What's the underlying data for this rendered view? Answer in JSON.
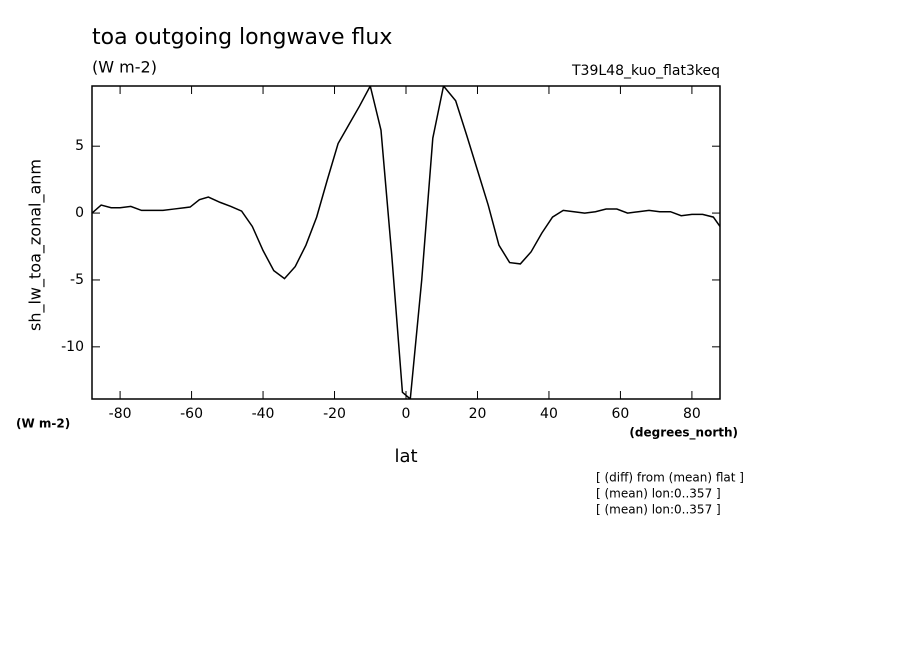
{
  "chart_data": {
    "type": "line",
    "title": "toa outgoing longwave flux",
    "subtitle": "(W m-2)",
    "run_label": "T39L48_kuo_flat3keq",
    "y_label": "sh_lw_toa_zonal_anm",
    "y_units": "(W m-2)",
    "x_units": "(degrees_north)",
    "x_label": "lat",
    "notes": [
      "[ (diff) from (mean) flat ]",
      "[ (mean) lon:0..357 ]",
      "[ (mean) lon:0..357 ]"
    ],
    "xlim": [
      -87.86,
      87.86
    ],
    "ylim": [
      -13.9,
      9.5
    ],
    "xticks": [
      -80,
      -60,
      -40,
      -20,
      0,
      20,
      40,
      60,
      80
    ],
    "yticks": [
      -10,
      -5,
      0,
      5
    ],
    "color": "#000000",
    "x": [
      -87.86,
      -85.3,
      -82.5,
      -80,
      -77,
      -74,
      -71,
      -68,
      -65,
      -62,
      -60.4,
      -57.8,
      -55.3,
      -52,
      -49,
      -46,
      -43,
      -40,
      -37,
      -34,
      -31,
      -28,
      -25,
      -22,
      -19,
      -16,
      -13,
      -10,
      -7,
      -4,
      -1,
      1.2,
      4.4,
      7.5,
      10.5,
      13.9,
      17,
      20,
      23,
      26,
      29,
      32,
      35,
      38,
      41,
      44,
      47,
      50,
      53,
      56,
      59,
      62,
      65,
      68,
      71,
      74,
      77,
      80,
      83,
      86,
      87.86
    ],
    "values": [
      0,
      0.6,
      0.4,
      0.4,
      0.5,
      0.2,
      0.2,
      0.2,
      0.3,
      0.4,
      0.45,
      1.0,
      1.2,
      0.8,
      0.5,
      0.15,
      -1.0,
      -2.8,
      -4.3,
      -4.9,
      -4.0,
      -2.4,
      -0.3,
      2.5,
      5.2,
      6.6,
      8.0,
      9.5,
      6.2,
      -3.1,
      -13.4,
      -13.9,
      -5.0,
      5.6,
      9.5,
      8.4,
      5.8,
      3.2,
      0.6,
      -2.4,
      -3.7,
      -3.8,
      -2.9,
      -1.5,
      -0.3,
      0.2,
      0.1,
      0,
      0.1,
      0.3,
      0.3,
      0,
      0.1,
      0.2,
      0.1,
      0.1,
      -0.2,
      -0.1,
      -0.1,
      -0.3,
      -1.0
    ]
  }
}
